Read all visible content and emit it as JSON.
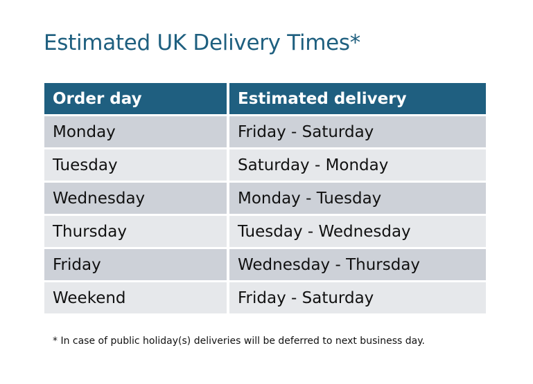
{
  "title": "Estimated UK Delivery Times*",
  "table": {
    "headers": [
      "Order day",
      "Estimated delivery"
    ],
    "rows": [
      [
        "Monday",
        "Friday - Saturday"
      ],
      [
        "Tuesday",
        "Saturday - Monday"
      ],
      [
        "Wednesday",
        "Monday - Tuesday"
      ],
      [
        "Thursday",
        "Tuesday - Wednesday"
      ],
      [
        "Friday",
        "Wednesday - Thursday"
      ],
      [
        "Weekend",
        "Friday - Saturday"
      ]
    ]
  },
  "footnote": "* In case of public holiday(s) deliveries will be deferred to next business day.",
  "colors": {
    "header": "#1f5f80",
    "row_odd": "#cdd1d8",
    "row_even": "#e6e8eb",
    "title": "#1e5f7f"
  }
}
